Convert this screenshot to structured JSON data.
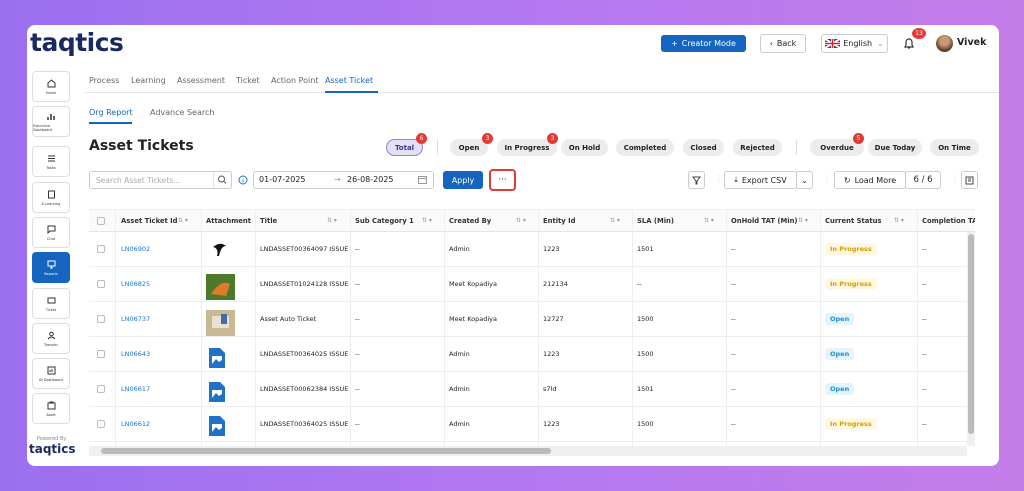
{
  "header": {
    "logo": "taqtics",
    "creator_mode": "Creator Mode",
    "back": "Back",
    "language": "English",
    "notifications": "13",
    "user": "Vivek"
  },
  "sidebar": {
    "items": [
      "Home",
      "Executive Dashboard",
      "Tasks",
      "E-Learning",
      "Chat",
      "Reports",
      "Ticket",
      "Transfer",
      "BI Dashboard",
      "Asset"
    ],
    "powered_by": "Powered By",
    "brand": "taqtics"
  },
  "tabs": [
    "Process",
    "Learning",
    "Assessment",
    "Ticket",
    "Action Point",
    "Asset Ticket"
  ],
  "subtabs": [
    "Org Report",
    "Advance Search"
  ],
  "title": "Asset Tickets",
  "status_filters": [
    {
      "label": "Total",
      "count": "6"
    },
    {
      "label": "Open",
      "count": "3"
    },
    {
      "label": "In Progress",
      "count": "3"
    },
    {
      "label": "On Hold"
    },
    {
      "label": "Completed"
    },
    {
      "label": "Closed"
    },
    {
      "label": "Rejected"
    },
    {
      "label": "Overdue",
      "count": "5"
    },
    {
      "label": "Due Today"
    },
    {
      "label": "On Time"
    }
  ],
  "toolbar": {
    "search_placeholder": "Search Asset Tickets...",
    "date_from": "01-07-2025",
    "date_to": "26-08-2025",
    "apply": "Apply",
    "export": "Export CSV",
    "load_more": "Load More",
    "pagination": "6 / 6"
  },
  "table": {
    "columns": [
      "Asset Ticket Id",
      "Attachment",
      "Title",
      "Sub Category 1",
      "Created By",
      "Entity Id",
      "SLA (Min)",
      "OnHold TAT (Min)",
      "Current Status",
      "Completion TAT"
    ],
    "rows": [
      {
        "id": "LN06902",
        "title": "LNDASSET00364097 ISSUE:",
        "sub_category": "--",
        "created_by": "Admin",
        "entity_id": "1223",
        "sla": "1501",
        "onhold_tat": "--",
        "status": "In Progress",
        "completion_tat": "--"
      },
      {
        "id": "LN06825",
        "title": "LNDASSET01024128 ISSUE:",
        "sub_category": "--",
        "created_by": "Meet Kopadiya",
        "entity_id": "212134",
        "sla": "--",
        "onhold_tat": "--",
        "status": "In Progress",
        "completion_tat": "--"
      },
      {
        "id": "LN06737",
        "title": "Asset Auto Ticket",
        "sub_category": "--",
        "created_by": "Meet Kopadiya",
        "entity_id": "12727",
        "sla": "1500",
        "onhold_tat": "--",
        "status": "Open",
        "completion_tat": "--"
      },
      {
        "id": "LN06643",
        "title": "LNDASSET00364025 ISSUE:",
        "sub_category": "--",
        "created_by": "Admin",
        "entity_id": "1223",
        "sla": "1500",
        "onhold_tat": "--",
        "status": "Open",
        "completion_tat": "--"
      },
      {
        "id": "LN06617",
        "title": "LNDASSET00062384 ISSUE:",
        "sub_category": "--",
        "created_by": "Admin",
        "entity_id": "s7ld",
        "sla": "1501",
        "onhold_tat": "--",
        "status": "Open",
        "completion_tat": "--"
      },
      {
        "id": "LN06612",
        "title": "LNDASSET00364025 ISSUE...",
        "sub_category": "--",
        "created_by": "Admin",
        "entity_id": "1223",
        "sla": "1500",
        "onhold_tat": "--",
        "status": "In Progress",
        "completion_tat": "--"
      }
    ]
  }
}
